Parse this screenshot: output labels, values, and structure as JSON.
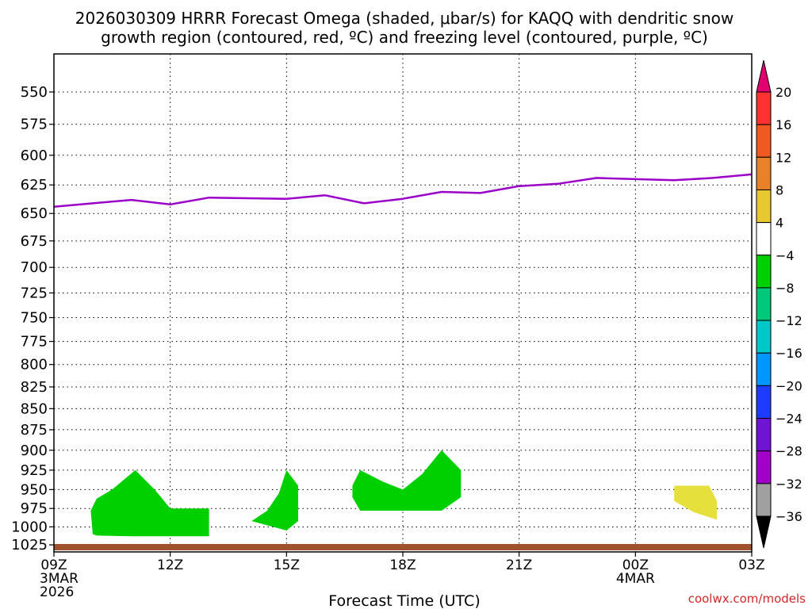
{
  "chart_data": {
    "type": "contour",
    "title_line1": "2026030309 HRRR Forecast Omega (shaded, μbar/s) for KAQQ with dendritic snow",
    "title_line2": "growth region (contoured, red, ºC) and freezing level (contoured, purple, ºC)",
    "xlabel": "Forecast Time (UTC)",
    "ylabel": "",
    "credit": "coolwx.com/models",
    "x_range_hours": [
      0,
      18
    ],
    "y_range_hpa": [
      1035,
      522
    ],
    "y_scale": "log-pressure",
    "grid": true,
    "x_ticks": [
      {
        "hour": 0,
        "lines": [
          "09Z",
          "3MAR",
          "2026"
        ]
      },
      {
        "hour": 3,
        "lines": [
          "12Z"
        ]
      },
      {
        "hour": 6,
        "lines": [
          "15Z"
        ]
      },
      {
        "hour": 9,
        "lines": [
          "18Z"
        ]
      },
      {
        "hour": 12,
        "lines": [
          "21Z"
        ]
      },
      {
        "hour": 15,
        "lines": [
          "00Z",
          "4MAR"
        ]
      },
      {
        "hour": 18,
        "lines": [
          "03Z"
        ]
      }
    ],
    "y_ticks": [
      550,
      575,
      600,
      625,
      650,
      675,
      700,
      725,
      750,
      775,
      800,
      825,
      850,
      875,
      900,
      925,
      950,
      975,
      1000,
      1025
    ],
    "freezing_level": {
      "color": "#9a00c8",
      "points": [
        [
          0,
          644
        ],
        [
          2,
          638
        ],
        [
          3,
          642
        ],
        [
          4,
          636
        ],
        [
          6,
          637
        ],
        [
          7,
          634
        ],
        [
          8,
          641
        ],
        [
          9,
          637
        ],
        [
          10,
          631
        ],
        [
          11,
          632
        ],
        [
          12,
          626
        ],
        [
          13,
          624
        ],
        [
          14,
          619
        ],
        [
          15,
          620
        ],
        [
          16,
          621
        ],
        [
          17,
          619
        ],
        [
          18,
          616
        ]
      ]
    },
    "omega_regions": [
      {
        "value_range": "-8 to -4",
        "color": "#00d000",
        "points": [
          [
            1.0,
            1010
          ],
          [
            0.95,
            978
          ],
          [
            1.1,
            962
          ],
          [
            1.5,
            950
          ],
          [
            2.1,
            925
          ],
          [
            2.6,
            950
          ],
          [
            3.0,
            975
          ],
          [
            4.0,
            975
          ],
          [
            4.0,
            1013
          ],
          [
            3.2,
            1013
          ],
          [
            2.0,
            1013
          ],
          [
            1.1,
            1012
          ]
        ]
      },
      {
        "value_range": "-8 to -4",
        "color": "#00d000",
        "points": [
          [
            5.1,
            992
          ],
          [
            5.5,
            978
          ],
          [
            5.8,
            955
          ],
          [
            6.0,
            925
          ],
          [
            6.3,
            945
          ],
          [
            6.3,
            992
          ],
          [
            6.0,
            1005
          ]
        ]
      },
      {
        "value_range": "-8 to -4",
        "color": "#00d000",
        "points": [
          [
            7.7,
            945
          ],
          [
            7.9,
            925
          ],
          [
            8.5,
            940
          ],
          [
            9.0,
            950
          ],
          [
            9.5,
            930
          ],
          [
            10.0,
            900
          ],
          [
            10.5,
            925
          ],
          [
            10.5,
            960
          ],
          [
            10.0,
            978
          ],
          [
            7.9,
            978
          ],
          [
            7.7,
            960
          ]
        ]
      },
      {
        "value_range": "4 to 8",
        "color": "#e6e03c",
        "points": [
          [
            16.0,
            965
          ],
          [
            16.0,
            945
          ],
          [
            16.9,
            945
          ],
          [
            17.1,
            965
          ],
          [
            17.1,
            990
          ],
          [
            16.5,
            980
          ]
        ]
      }
    ],
    "legend": {
      "title": "",
      "levels": [
        "20",
        "16",
        "12",
        "8",
        "4",
        "−4",
        "−8",
        "−12",
        "−16",
        "−20",
        "−24",
        "−28",
        "−32",
        "−36"
      ],
      "top_arrow_color": "#e0006e",
      "bottom_arrow_color": "#000000",
      "bins": [
        {
          "range": "16 to 20",
          "color": "#ff3232"
        },
        {
          "range": "12 to 16",
          "color": "#f05a22"
        },
        {
          "range": "8 to 12",
          "color": "#e8822a"
        },
        {
          "range": "4 to 8",
          "color": "#e8c830"
        },
        {
          "range": "-4 to 4",
          "color": "#ffffff"
        },
        {
          "range": "-8 to -4",
          "color": "#00d000"
        },
        {
          "range": "-12 to -8",
          "color": "#00c87a"
        },
        {
          "range": "-16 to -12",
          "color": "#00c8c8"
        },
        {
          "range": "-20 to -16",
          "color": "#0096ff"
        },
        {
          "range": "-24 to -20",
          "color": "#1e3cff"
        },
        {
          "range": "-28 to -24",
          "color": "#6e14d2"
        },
        {
          "range": "-32 to -28",
          "color": "#a000c8"
        },
        {
          "range": "-36 to -32",
          "color": "#a0a0a0"
        }
      ]
    },
    "terrain_color": "#a0522d"
  }
}
